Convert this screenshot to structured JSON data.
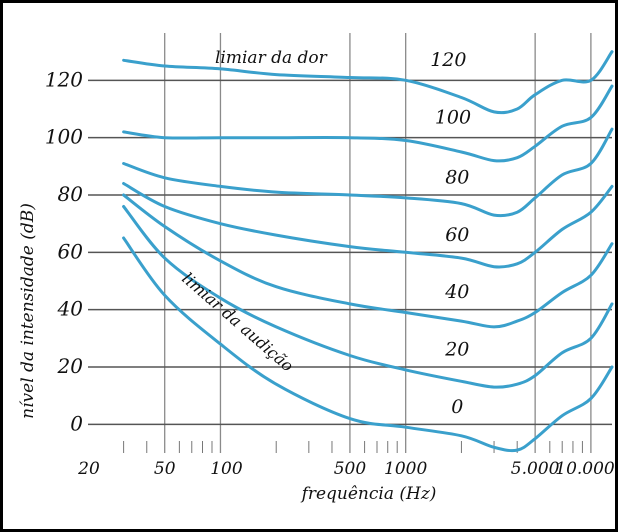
{
  "chart_data": {
    "type": "line",
    "title": "",
    "xlabel": "frequência (Hz)",
    "ylabel": "nível da intensidade (dB)",
    "x_scale": "log",
    "xlim": [
      20,
      13000
    ],
    "ylim": [
      -10,
      140
    ],
    "grid": true,
    "x_tick_labels": [
      {
        "value": 20,
        "label": "20"
      },
      {
        "value": 50,
        "label": "50"
      },
      {
        "value": 100,
        "label": "100"
      },
      {
        "value": 500,
        "label": "500"
      },
      {
        "value": 1000,
        "label": "1000"
      },
      {
        "value": 5000,
        "label": "5.000"
      },
      {
        "value": 10000,
        "label": "10.000"
      }
    ],
    "x_gridlines": [
      50,
      100,
      500,
      1000,
      5000,
      10000
    ],
    "x_minor_ticks": [
      30,
      40,
      60,
      70,
      80,
      90,
      200,
      300,
      400,
      600,
      700,
      800,
      900,
      2000,
      3000,
      4000,
      6000,
      7000,
      8000,
      9000
    ],
    "y_ticks": [
      {
        "value": 0,
        "label": "0"
      },
      {
        "value": 20,
        "label": "20"
      },
      {
        "value": 40,
        "label": "40"
      },
      {
        "value": 60,
        "label": "60"
      },
      {
        "value": 80,
        "label": "80"
      },
      {
        "value": 100,
        "label": "100"
      },
      {
        "value": 120,
        "label": "120"
      }
    ],
    "curve_color": "#3aa0cc",
    "series": [
      {
        "label": "0",
        "annotation": "limiar da audição",
        "points": [
          [
            30,
            65
          ],
          [
            50,
            45
          ],
          [
            100,
            28
          ],
          [
            200,
            14
          ],
          [
            500,
            2
          ],
          [
            1000,
            -1
          ],
          [
            2000,
            -4
          ],
          [
            3000,
            -8
          ],
          [
            4000,
            -9
          ],
          [
            5000,
            -5
          ],
          [
            7000,
            3
          ],
          [
            10000,
            9
          ],
          [
            13000,
            20
          ]
        ]
      },
      {
        "label": "20",
        "points": [
          [
            30,
            76
          ],
          [
            50,
            58
          ],
          [
            100,
            44
          ],
          [
            200,
            34
          ],
          [
            500,
            24
          ],
          [
            1000,
            19
          ],
          [
            2000,
            15
          ],
          [
            3000,
            13
          ],
          [
            4000,
            14
          ],
          [
            5000,
            17
          ],
          [
            7000,
            25
          ],
          [
            10000,
            30
          ],
          [
            13000,
            42
          ]
        ]
      },
      {
        "label": "40",
        "points": [
          [
            30,
            80
          ],
          [
            50,
            69
          ],
          [
            100,
            57
          ],
          [
            200,
            48
          ],
          [
            500,
            42
          ],
          [
            1000,
            39
          ],
          [
            2000,
            36
          ],
          [
            3000,
            34
          ],
          [
            4000,
            36
          ],
          [
            5000,
            39
          ],
          [
            7000,
            46
          ],
          [
            10000,
            52
          ],
          [
            13000,
            63
          ]
        ]
      },
      {
        "label": "60",
        "points": [
          [
            30,
            84
          ],
          [
            50,
            76
          ],
          [
            100,
            70
          ],
          [
            200,
            66
          ],
          [
            500,
            62
          ],
          [
            1000,
            60
          ],
          [
            2000,
            58
          ],
          [
            3000,
            55
          ],
          [
            4000,
            56
          ],
          [
            5000,
            60
          ],
          [
            7000,
            68
          ],
          [
            10000,
            74
          ],
          [
            13000,
            83
          ]
        ]
      },
      {
        "label": "80",
        "points": [
          [
            30,
            91
          ],
          [
            50,
            86
          ],
          [
            100,
            83
          ],
          [
            200,
            81
          ],
          [
            500,
            80
          ],
          [
            1000,
            79
          ],
          [
            2000,
            77
          ],
          [
            3000,
            73
          ],
          [
            4000,
            74
          ],
          [
            5000,
            79
          ],
          [
            7000,
            87
          ],
          [
            10000,
            91
          ],
          [
            13000,
            103
          ]
        ]
      },
      {
        "label": "100",
        "points": [
          [
            30,
            102
          ],
          [
            50,
            100
          ],
          [
            100,
            100
          ],
          [
            200,
            100
          ],
          [
            500,
            100
          ],
          [
            1000,
            99
          ],
          [
            2000,
            95
          ],
          [
            3000,
            92
          ],
          [
            4000,
            93
          ],
          [
            5000,
            97
          ],
          [
            7000,
            104
          ],
          [
            10000,
            107
          ],
          [
            13000,
            118
          ]
        ]
      },
      {
        "label": "120",
        "annotation": "limiar da dor",
        "points": [
          [
            30,
            127
          ],
          [
            50,
            125
          ],
          [
            100,
            124
          ],
          [
            200,
            122
          ],
          [
            500,
            121
          ],
          [
            1000,
            120
          ],
          [
            2000,
            114
          ],
          [
            3000,
            109
          ],
          [
            4000,
            110
          ],
          [
            5000,
            115
          ],
          [
            7000,
            120
          ],
          [
            10000,
            120
          ],
          [
            13000,
            130
          ]
        ]
      }
    ]
  }
}
